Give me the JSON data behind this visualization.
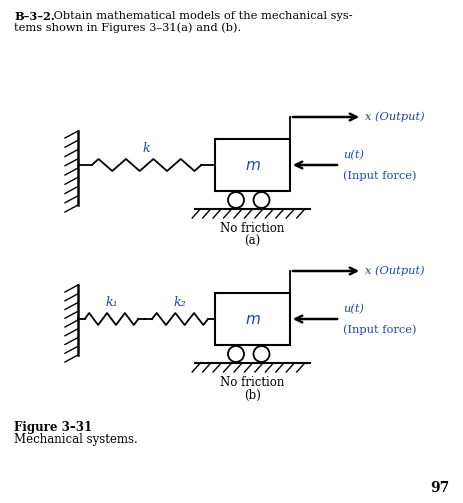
{
  "bg_color": "#ffffff",
  "title_bold": "B–3–2.",
  "title_normal": " Obtain mathematical models of the mechanical sys-",
  "title_line2": "tems shown in Figures 3–31(a) and (b).",
  "fig_caption_bold": "Figure 3–31",
  "fig_caption_normal": "Mechanical systems.",
  "page_number": "97",
  "diagram_a": {
    "label": "(a)",
    "no_friction": "No friction",
    "x_output": "x (Output)",
    "ut_label": "u(t)",
    "input_force": "(Input force)",
    "spring_label": "k",
    "mass_label": "m"
  },
  "diagram_b": {
    "label": "(b)",
    "no_friction": "No friction",
    "x_output": "x (Output)",
    "ut_label": "u(t)",
    "input_force": "(Input force)",
    "spring1_label": "k₁",
    "spring2_label": "k₂",
    "mass_label": "m"
  },
  "line_color": "#000000",
  "text_color": "#000000",
  "label_color": "#2244aa",
  "italic_color": "#2244aa"
}
